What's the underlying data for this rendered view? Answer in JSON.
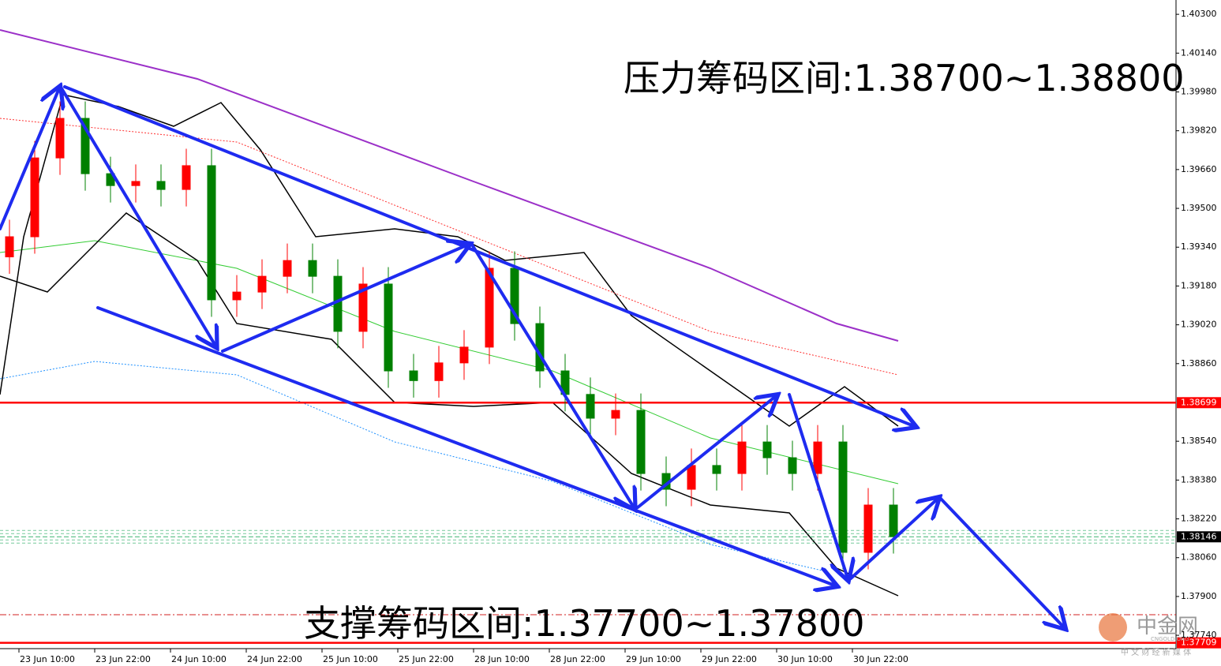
{
  "chart_data": {
    "type": "candlestick",
    "annotations": [
      "压力筹码区间:1.38700~1.38800",
      "支撑筹码区间:1.37700~1.37800"
    ],
    "watermark": {
      "name": "中金网",
      "site": "CNGOLD.ORG",
      "slogan": "中 文 财 经 新 媒 体"
    },
    "x_labels": [
      "23 Jun 10:00",
      "23 Jun 22:00",
      "24 Jun 10:00",
      "24 Jun 22:00",
      "25 Jun 10:00",
      "25 Jun 22:00",
      "28 Jun 10:00",
      "28 Jun 22:00",
      "29 Jun 10:00",
      "29 Jun 22:00",
      "30 Jun 10:00",
      "30 Jun 22:00"
    ],
    "ylim": [
      1.37685,
      1.40359
    ],
    "yticks": [
      {
        "value": 1.403,
        "label": "1.40300"
      },
      {
        "value": 1.4014,
        "label": "1.40140"
      },
      {
        "value": 1.3998,
        "label": "1.39980"
      },
      {
        "value": 1.3982,
        "label": "1.39820"
      },
      {
        "value": 1.3966,
        "label": "1.39660"
      },
      {
        "value": 1.395,
        "label": "1.39500"
      },
      {
        "value": 1.3934,
        "label": "1.39340"
      },
      {
        "value": 1.3918,
        "label": "1.39180"
      },
      {
        "value": 1.3902,
        "label": "1.39020"
      },
      {
        "value": 1.3886,
        "label": "1.38860"
      },
      {
        "value": 1.3854,
        "label": "1.38540"
      },
      {
        "value": 1.3838,
        "label": "1.38380"
      },
      {
        "value": 1.3822,
        "label": "1.38220"
      },
      {
        "value": 1.3806,
        "label": "1.38060"
      },
      {
        "value": 1.379,
        "label": "1.37900"
      },
      {
        "value": 1.3774,
        "label": "1.37740"
      }
    ],
    "levels": [
      {
        "value": 1.38699,
        "label": "1.38699",
        "color": "#ff0000",
        "style": "solid"
      },
      {
        "value": 1.38146,
        "label": "1.38146",
        "color": "#3cb371",
        "style": "dashed"
      },
      {
        "value": 1.37825,
        "color": "#d02020",
        "style": "dashdot"
      },
      {
        "value": 1.37709,
        "label": "1.37709",
        "color": "#ff0000",
        "style": "solid"
      }
    ],
    "up_color": "#ff0000",
    "down_color": "#008000",
    "open": [
      1.393,
      1.39383,
      1.39708,
      1.39871,
      1.39643,
      1.39594,
      1.39611,
      1.39578,
      1.39676,
      1.39123,
      1.39155,
      1.3922,
      1.39285,
      1.3922,
      1.38993,
      1.39188,
      1.3883,
      1.3879,
      1.38863,
      1.38928,
      1.39253,
      1.39025,
      1.3883,
      1.38733,
      1.38635,
      1.38667,
      1.38407,
      1.38342,
      1.3844,
      1.38407,
      1.38537,
      1.38472,
      1.38407,
      1.38537,
      1.38082,
      1.38277
    ],
    "high": [
      1.39453,
      1.39778,
      1.39941,
      1.39941,
      1.39713,
      1.39681,
      1.39681,
      1.39746,
      1.39746,
      1.39225,
      1.3929,
      1.39355,
      1.39355,
      1.3929,
      1.39258,
      1.39258,
      1.389,
      1.38933,
      1.38998,
      1.39323,
      1.39323,
      1.39095,
      1.389,
      1.38803,
      1.38737,
      1.38737,
      1.38477,
      1.3851,
      1.3851,
      1.38607,
      1.38607,
      1.38542,
      1.38607,
      1.38607,
      1.38347,
      1.38347
    ],
    "low": [
      1.3923,
      1.39313,
      1.39638,
      1.39573,
      1.39524,
      1.39524,
      1.39508,
      1.39508,
      1.39053,
      1.39053,
      1.39085,
      1.3915,
      1.3915,
      1.38923,
      1.38923,
      1.3876,
      1.3872,
      1.3872,
      1.38793,
      1.38858,
      1.38955,
      1.3876,
      1.38663,
      1.38565,
      1.38565,
      1.38337,
      1.38272,
      1.38272,
      1.38337,
      1.38337,
      1.38402,
      1.38337,
      1.38337,
      1.38012,
      1.38012,
      1.38077
    ],
    "close": [
      1.39383,
      1.39708,
      1.39871,
      1.39643,
      1.39594,
      1.39611,
      1.39578,
      1.39676,
      1.39123,
      1.39155,
      1.3922,
      1.39285,
      1.3922,
      1.38993,
      1.39188,
      1.3883,
      1.3879,
      1.38863,
      1.38928,
      1.39253,
      1.39025,
      1.3883,
      1.38733,
      1.38635,
      1.38667,
      1.38407,
      1.38342,
      1.3844,
      1.38407,
      1.38537,
      1.38472,
      1.38407,
      1.38537,
      1.38082,
      1.38277,
      1.38147
    ]
  }
}
